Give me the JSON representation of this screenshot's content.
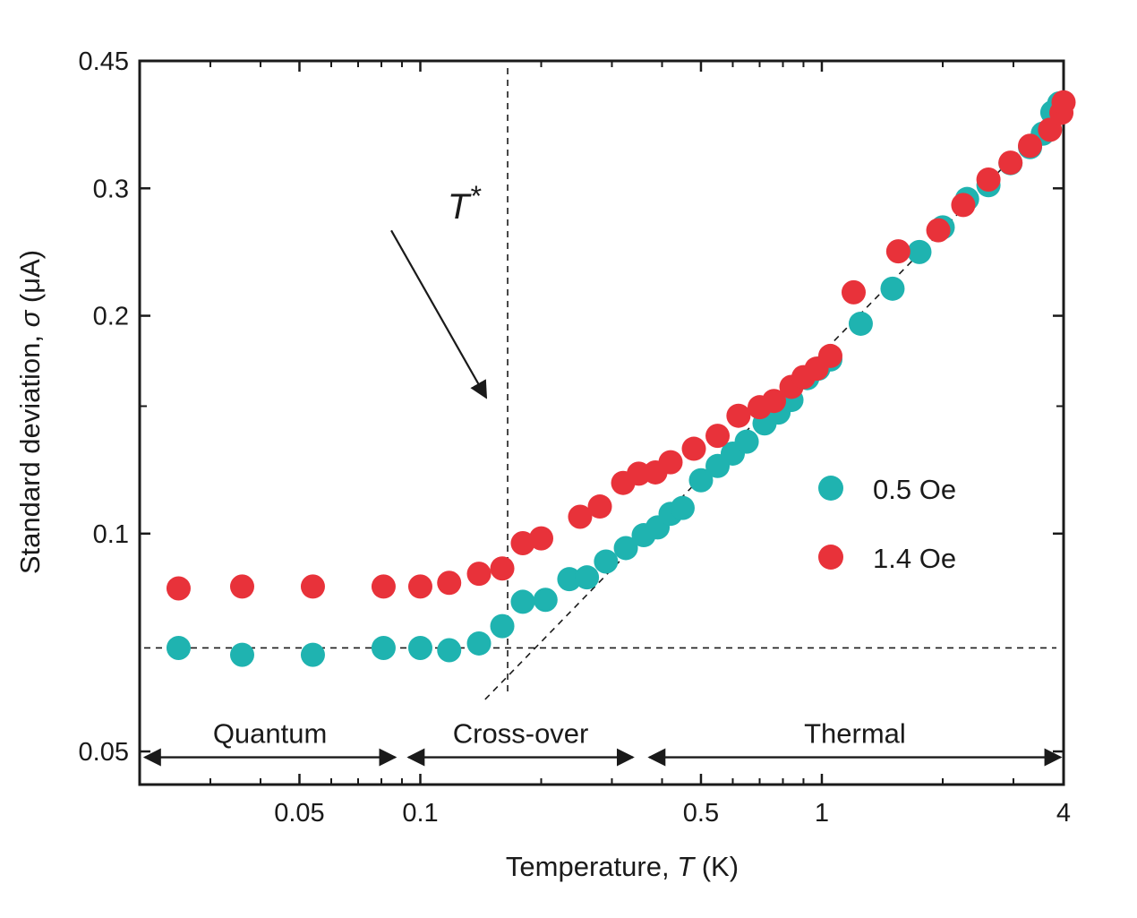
{
  "chart_data": {
    "type": "scatter",
    "xscale": "log",
    "yscale": "log",
    "xlim": [
      0.02,
      4
    ],
    "ylim": [
      0.045,
      0.45
    ],
    "xlabel_prefix": "Temperature, ",
    "xlabel_var": "T",
    "xlabel_suffix": " (K)",
    "ylabel_prefix": "Standard deviation, ",
    "ylabel_var": "σ",
    "ylabel_suffix": " (μA)",
    "x_ticks": [
      {
        "value": 0.05,
        "label": "0.05"
      },
      {
        "value": 0.1,
        "label": "0.1"
      },
      {
        "value": 0.5,
        "label": "0.5"
      },
      {
        "value": 1,
        "label": "1"
      },
      {
        "value": 4,
        "label": "4"
      }
    ],
    "x_minor_ticks": [
      0.02,
      0.03,
      0.04,
      0.06,
      0.07,
      0.08,
      0.09,
      0.2,
      0.3,
      0.4,
      0.6,
      0.7,
      0.8,
      0.9,
      2,
      3
    ],
    "y_ticks": [
      {
        "value": 0.05,
        "label": "0.05"
      },
      {
        "value": 0.1,
        "label": "0.1"
      },
      {
        "value": 0.2,
        "label": "0.2"
      },
      {
        "value": 0.3,
        "label": "0.3"
      },
      {
        "value": 0.45,
        "label": "0.45"
      }
    ],
    "y_minor_ticks": [
      0.15
    ],
    "series": [
      {
        "name": "0.5 Oe",
        "color": "#1fb3b0",
        "points": [
          [
            0.025,
            0.0695
          ],
          [
            0.036,
            0.068
          ],
          [
            0.054,
            0.068
          ],
          [
            0.081,
            0.0695
          ],
          [
            0.1,
            0.0695
          ],
          [
            0.118,
            0.069
          ],
          [
            0.14,
            0.0705
          ],
          [
            0.16,
            0.0745
          ],
          [
            0.18,
            0.0805
          ],
          [
            0.205,
            0.081
          ],
          [
            0.235,
            0.0865
          ],
          [
            0.26,
            0.087
          ],
          [
            0.29,
            0.0915
          ],
          [
            0.325,
            0.0955
          ],
          [
            0.36,
            0.0995
          ],
          [
            0.39,
            0.102
          ],
          [
            0.42,
            0.1065
          ],
          [
            0.45,
            0.1085
          ],
          [
            0.5,
            0.1185
          ],
          [
            0.55,
            0.124
          ],
          [
            0.6,
            0.129
          ],
          [
            0.65,
            0.134
          ],
          [
            0.72,
            0.142
          ],
          [
            0.78,
            0.147
          ],
          [
            0.84,
            0.153
          ],
          [
            0.92,
            0.164
          ],
          [
            0.98,
            0.169
          ],
          [
            1.05,
            0.174
          ],
          [
            1.25,
            0.195
          ],
          [
            1.5,
            0.218
          ],
          [
            1.75,
            0.245
          ],
          [
            2.0,
            0.265
          ],
          [
            2.3,
            0.29
          ],
          [
            2.6,
            0.303
          ],
          [
            2.95,
            0.325
          ],
          [
            3.3,
            0.342
          ],
          [
            3.55,
            0.357
          ],
          [
            3.75,
            0.382
          ],
          [
            3.9,
            0.393
          ]
        ]
      },
      {
        "name": "1.4 Oe",
        "color": "#e8323a",
        "points": [
          [
            0.025,
            0.084
          ],
          [
            0.036,
            0.0845
          ],
          [
            0.054,
            0.0845
          ],
          [
            0.081,
            0.0845
          ],
          [
            0.1,
            0.0845
          ],
          [
            0.118,
            0.0855
          ],
          [
            0.14,
            0.088
          ],
          [
            0.16,
            0.0895
          ],
          [
            0.18,
            0.097
          ],
          [
            0.2,
            0.0985
          ],
          [
            0.25,
            0.1055
          ],
          [
            0.28,
            0.109
          ],
          [
            0.32,
            0.1175
          ],
          [
            0.35,
            0.121
          ],
          [
            0.385,
            0.1215
          ],
          [
            0.42,
            0.1255
          ],
          [
            0.48,
            0.131
          ],
          [
            0.55,
            0.1365
          ],
          [
            0.62,
            0.1455
          ],
          [
            0.7,
            0.1495
          ],
          [
            0.76,
            0.1525
          ],
          [
            0.84,
            0.1595
          ],
          [
            0.9,
            0.1645
          ],
          [
            0.97,
            0.169
          ],
          [
            1.05,
            0.176
          ],
          [
            1.2,
            0.2155
          ],
          [
            1.55,
            0.2455
          ],
          [
            1.95,
            0.2625
          ],
          [
            2.25,
            0.2845
          ],
          [
            2.6,
            0.3085
          ],
          [
            2.95,
            0.3255
          ],
          [
            3.3,
            0.3435
          ],
          [
            3.7,
            0.3615
          ],
          [
            3.95,
            0.3815
          ],
          [
            4.0,
            0.3945
          ]
        ]
      }
    ],
    "reference_lines": {
      "quantum_floor_sigma": 0.0695,
      "tstar_K": 0.165,
      "thermal_line": {
        "from": [
          0.145,
          0.059
        ],
        "to": [
          3.6,
          0.368
        ]
      }
    },
    "annotations": {
      "tstar_base": "T",
      "tstar_sup": "*",
      "tstar_label_at": [
        0.155,
        0.275
      ],
      "tstar_arrow_from": [
        0.165,
        0.255
      ],
      "tstar_arrow_to": [
        0.16,
        0.152
      ]
    },
    "regions": [
      {
        "label": "Quantum",
        "from": 0.0205,
        "to": 0.087,
        "sigma": 0.0505
      },
      {
        "label": "Cross-over",
        "from": 0.093,
        "to": 0.34,
        "sigma": 0.0505
      },
      {
        "label": "Thermal",
        "from": 0.37,
        "to": 3.95,
        "sigma": 0.0505
      }
    ],
    "legend": {
      "position": "right-middle",
      "entries": [
        "0.5 Oe",
        "1.4 Oe"
      ]
    }
  }
}
